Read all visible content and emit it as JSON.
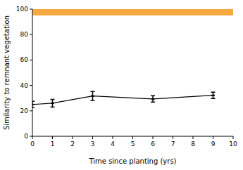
{
  "chart_data": {
    "type": "line",
    "x_label": "Time since planting (yrs)",
    "y_label": "Similarity to remnant vegetation",
    "x": [
      0,
      1,
      3,
      6,
      9
    ],
    "series": [
      {
        "color": "#000000",
        "values": [
          25,
          26,
          31.7,
          29.4,
          32.2
        ],
        "errors": [
          2.5,
          3,
          3.5,
          2.5,
          2.5
        ]
      }
    ],
    "reference_band": {
      "range": [
        95,
        100
      ],
      "color": "#f7a941"
    },
    "xlim": [
      0,
      10
    ],
    "xticks": [
      0,
      1,
      2,
      3,
      4,
      5,
      6,
      7,
      8,
      9,
      10
    ],
    "ylim": [
      0,
      100
    ],
    "yticks": [
      0,
      20,
      40,
      60,
      80,
      100
    ],
    "grid": false
  }
}
